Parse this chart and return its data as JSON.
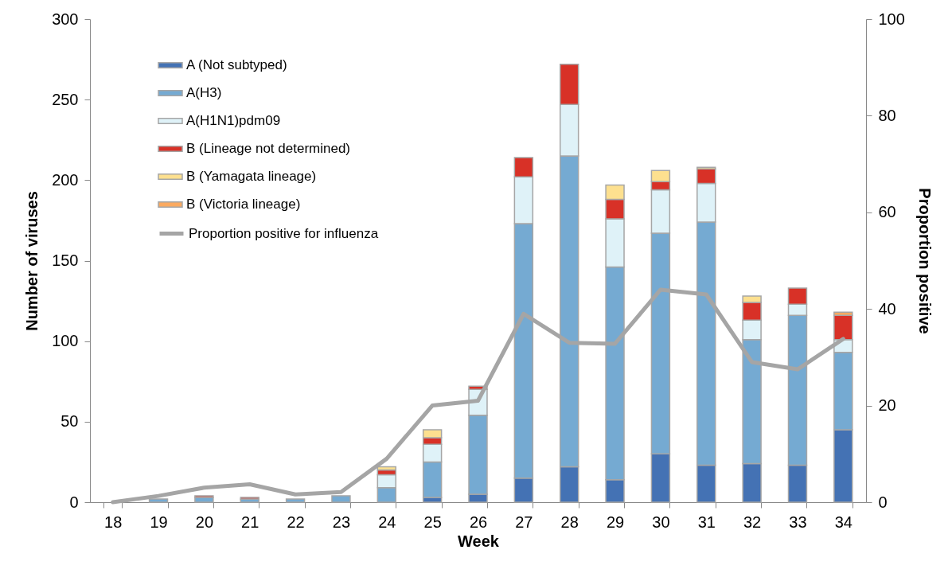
{
  "chart_data": {
    "type": "bar",
    "stacked": true,
    "xlabel": "Week",
    "ylabel": "Number of viruses",
    "y2label": "Proportion positive",
    "categories": [
      "18",
      "19",
      "20",
      "21",
      "22",
      "23",
      "24",
      "25",
      "26",
      "27",
      "28",
      "29",
      "30",
      "31",
      "32",
      "33",
      "34"
    ],
    "ylim": [
      0,
      300
    ],
    "yticks": [
      0,
      50,
      100,
      150,
      200,
      250,
      300
    ],
    "y2lim": [
      0,
      100
    ],
    "y2ticks": [
      0,
      20,
      40,
      60,
      80,
      100
    ],
    "legend": "top left",
    "grid": false,
    "series": [
      {
        "name": "A (Not subtyped)",
        "color": "#4472b4",
        "values": [
          0,
          0,
          0,
          0,
          0,
          0,
          0,
          3,
          5,
          15,
          22,
          14,
          30,
          23,
          24,
          23,
          45
        ]
      },
      {
        "name": "A(H3)",
        "color": "#75aad2",
        "values": [
          0,
          2,
          3,
          2,
          2,
          4,
          9,
          22,
          49,
          158,
          193,
          132,
          137,
          151,
          77,
          93,
          48
        ]
      },
      {
        "name": "A(H1N1)pdm09",
        "color": "#dff2f8",
        "values": [
          0,
          0,
          0,
          0,
          0,
          0,
          8,
          11,
          16,
          29,
          32,
          30,
          27,
          24,
          12,
          7,
          8
        ]
      },
      {
        "name": "B (Lineage not determined)",
        "color": "#d83127",
        "values": [
          0,
          0,
          1,
          1,
          0,
          0,
          3,
          4,
          2,
          12,
          25,
          12,
          5,
          9,
          11,
          10,
          15
        ]
      },
      {
        "name": "B (Yamagata lineage)",
        "color": "#fde08f",
        "values": [
          0,
          0,
          0,
          0,
          0,
          0,
          2,
          5,
          0,
          0,
          0,
          9,
          7,
          1,
          4,
          0,
          0
        ]
      },
      {
        "name": "B (Victoria lineage)",
        "color": "#fbaa60",
        "values": [
          0,
          0,
          0,
          0,
          0,
          0,
          0,
          0,
          0,
          0,
          0,
          0,
          0,
          0,
          0,
          0,
          2
        ]
      },
      {
        "name": "Proportion positive for influenza",
        "type": "line",
        "axis": "y2",
        "color": "#a5a5a5",
        "values": [
          0,
          1.3,
          3,
          3.7,
          1.6,
          2.1,
          9,
          20,
          21,
          39,
          33,
          32.8,
          44,
          43,
          29,
          27.5,
          33.8
        ]
      }
    ]
  }
}
